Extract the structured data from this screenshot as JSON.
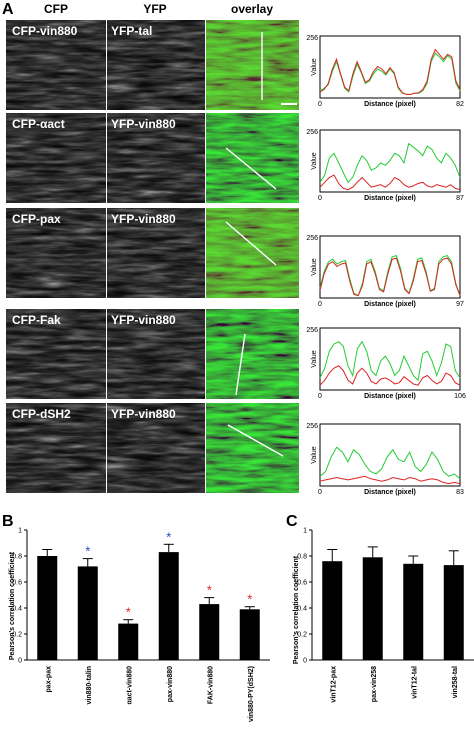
{
  "panel_a": {
    "label": "A",
    "column_headers": [
      "CFP",
      "YFP",
      "overlay"
    ],
    "rows": [
      {
        "cfp": "CFP-vin880",
        "yfp": "YFP-tal"
      },
      {
        "cfp": "CFP-αact",
        "yfp": "YFP-vin880"
      },
      {
        "cfp": "CFP-pax",
        "yfp": "YFP-vin880"
      },
      {
        "cfp": "CFP-Fak",
        "yfp": "YFP-vin880"
      },
      {
        "cfp": "CFP-dSH2",
        "yfp": "YFP-vin880"
      }
    ]
  },
  "line_profiles": [
    {
      "ylabel": "Value",
      "xlabel": "Distance (pixel)",
      "y_max": "256",
      "x_min": "0",
      "x_max": "82",
      "green": [
        30,
        40,
        55,
        110,
        150,
        95,
        40,
        25,
        90,
        140,
        105,
        60,
        70,
        100,
        120,
        110,
        95,
        120,
        100,
        40,
        20,
        15,
        15,
        20,
        20,
        30,
        60,
        150,
        185,
        170,
        150,
        175,
        160,
        60,
        30
      ],
      "red": [
        25,
        35,
        60,
        120,
        160,
        100,
        45,
        30,
        100,
        150,
        110,
        65,
        75,
        110,
        130,
        120,
        100,
        125,
        105,
        45,
        22,
        15,
        15,
        20,
        22,
        35,
        70,
        160,
        200,
        180,
        160,
        180,
        170,
        70,
        35
      ]
    },
    {
      "ylabel": "Value",
      "xlabel": "Distance (pixel)",
      "y_max": "256",
      "x_min": "0",
      "x_max": "87",
      "green": [
        40,
        70,
        140,
        160,
        120,
        80,
        40,
        60,
        110,
        150,
        130,
        90,
        100,
        120,
        110,
        130,
        160,
        150,
        120,
        200,
        185,
        170,
        150,
        190,
        175,
        140,
        120,
        160,
        140,
        110,
        60
      ],
      "red": [
        20,
        40,
        60,
        70,
        35,
        15,
        10,
        20,
        40,
        60,
        40,
        20,
        25,
        30,
        20,
        35,
        60,
        50,
        30,
        20,
        25,
        35,
        40,
        25,
        20,
        30,
        25,
        20,
        30,
        15,
        10
      ]
    },
    {
      "ylabel": "Value",
      "xlabel": "Distance (pixel)",
      "y_max": "256",
      "x_min": "0",
      "x_max": "97",
      "green": [
        40,
        110,
        150,
        160,
        140,
        150,
        155,
        80,
        20,
        10,
        60,
        150,
        160,
        110,
        40,
        30,
        110,
        170,
        175,
        120,
        40,
        20,
        80,
        160,
        165,
        110,
        30,
        40,
        150,
        170,
        175,
        150,
        60,
        10
      ],
      "red": [
        30,
        100,
        140,
        150,
        130,
        140,
        145,
        70,
        15,
        10,
        50,
        140,
        150,
        100,
        35,
        25,
        100,
        160,
        165,
        110,
        35,
        18,
        70,
        150,
        155,
        100,
        28,
        35,
        140,
        160,
        165,
        140,
        55,
        10
      ]
    },
    {
      "ylabel": "Value",
      "xlabel": "Distance (pixel)",
      "y_max": "256",
      "x_min": "0",
      "x_max": "106",
      "green": [
        50,
        90,
        160,
        190,
        200,
        180,
        100,
        60,
        170,
        200,
        160,
        80,
        60,
        120,
        140,
        110,
        60,
        80,
        140,
        100,
        60,
        40,
        150,
        160,
        120,
        60,
        110,
        190,
        180,
        80,
        50
      ],
      "red": [
        20,
        40,
        70,
        90,
        100,
        80,
        40,
        25,
        70,
        90,
        70,
        35,
        25,
        45,
        50,
        40,
        25,
        30,
        55,
        40,
        25,
        20,
        50,
        60,
        40,
        25,
        35,
        70,
        60,
        30,
        20
      ]
    },
    {
      "ylabel": "Value",
      "xlabel": "Distance (pixel)",
      "y_max": "256",
      "x_min": "0",
      "x_max": "83",
      "green": [
        40,
        60,
        120,
        160,
        140,
        100,
        150,
        130,
        90,
        60,
        50,
        70,
        120,
        150,
        110,
        100,
        140,
        80,
        60,
        90,
        140,
        110,
        60,
        40,
        50,
        30
      ],
      "red": [
        20,
        25,
        30,
        35,
        30,
        25,
        30,
        35,
        40,
        30,
        25,
        20,
        25,
        35,
        30,
        25,
        35,
        30,
        20,
        25,
        30,
        25,
        15,
        10,
        15,
        10
      ]
    }
  ],
  "chart_data": [
    {
      "type": "bar",
      "panel_label": "B",
      "ylabel": "Pearson's correlation coefficient",
      "ylim": [
        0,
        1
      ],
      "yticks": [
        "0",
        "0.2",
        "0.4",
        "0.6",
        "0.8",
        "1"
      ],
      "categories": [
        "pax-pax",
        "vin880-talin",
        "αact-vin880",
        "pax-vin880",
        "FAK-vin880",
        "vin880-PY(dSH2)"
      ],
      "values": [
        0.8,
        0.72,
        0.28,
        0.83,
        0.43,
        0.39
      ],
      "errors": [
        0.05,
        0.06,
        0.03,
        0.06,
        0.05,
        0.02
      ],
      "markers": [
        "",
        "*",
        "*",
        "*",
        "*",
        "*"
      ],
      "marker_colors": [
        "",
        "#2244cc",
        "#dd2222",
        "#2244cc",
        "#dd2222",
        "#dd2222"
      ]
    },
    {
      "type": "bar",
      "panel_label": "C",
      "ylabel": "Pearson's correlation coefficient",
      "ylim": [
        0,
        1
      ],
      "yticks": [
        "0",
        "0.2",
        "0.4",
        "0.6",
        "0.8",
        "1"
      ],
      "categories": [
        "vinT12-pax",
        "pax-vin258",
        "vinT12-tal",
        "vin258-tal"
      ],
      "values": [
        0.76,
        0.79,
        0.74,
        0.73
      ],
      "errors": [
        0.09,
        0.08,
        0.06,
        0.11
      ]
    }
  ],
  "colors": {
    "green": "#22cc33",
    "red": "#dd2222",
    "label_text": "#ffffff",
    "bar": "#000000"
  }
}
